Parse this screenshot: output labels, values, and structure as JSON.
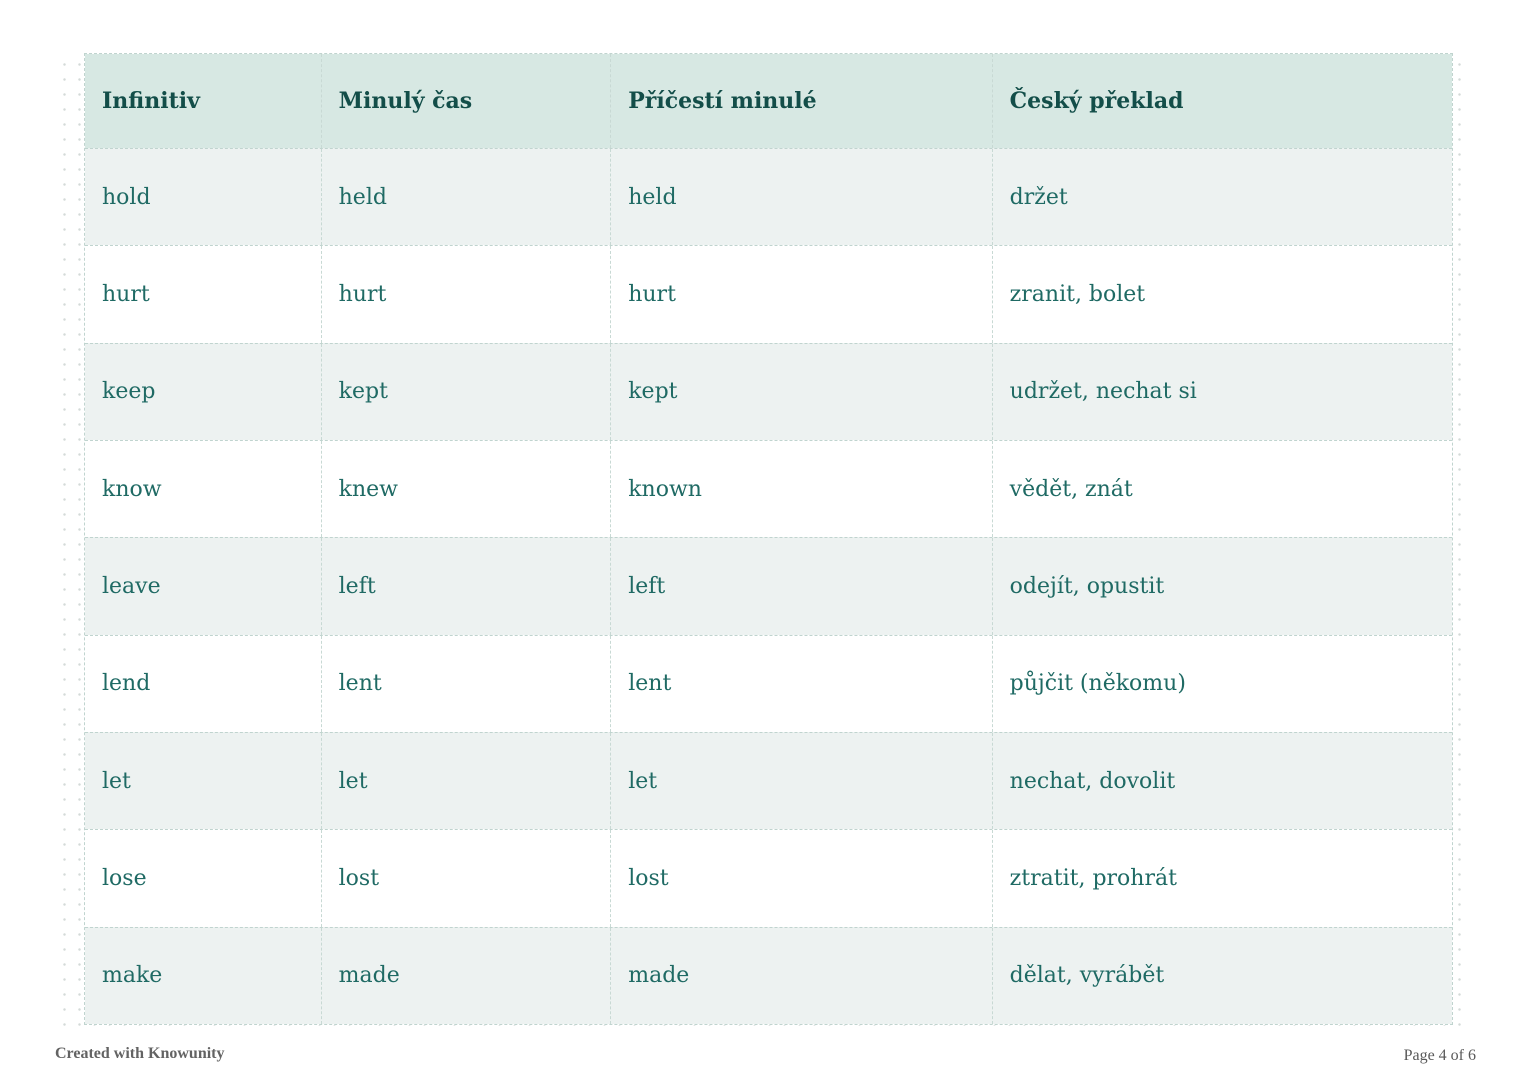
{
  "page": {
    "footer_left": "Created with Knowunity",
    "footer_right": "Page 4 of 6"
  },
  "colors": {
    "header_bg": "#d7e8e3",
    "alt_row_bg": "#edf2f1",
    "row_bg": "#ffffff",
    "body_text": "#1f6a64",
    "header_text": "#134e49",
    "dashed_border": "#c0d4cf",
    "dot_grid": "#d4dad8",
    "footer_text": "#636363"
  },
  "table": {
    "headers": [
      "Infinitiv",
      "Minulý čas",
      "Příčestí minulé",
      "Český překlad"
    ],
    "rows": [
      [
        "hold",
        "held",
        "held",
        "držet"
      ],
      [
        "hurt",
        "hurt",
        "hurt",
        "zranit, bolet"
      ],
      [
        "keep",
        "kept",
        "kept",
        "udržet, nechat si"
      ],
      [
        "know",
        "knew",
        "known",
        "vědět, znát"
      ],
      [
        "leave",
        "left",
        "left",
        "odejít, opustit"
      ],
      [
        "lend",
        "lent",
        "lent",
        "půjčit (někomu)"
      ],
      [
        "let",
        "let",
        "let",
        "nechat, dovolit"
      ],
      [
        "lose",
        "lost",
        "lost",
        "ztratit, prohrát"
      ],
      [
        "make",
        "made",
        "made",
        "dělat, vyrábět"
      ]
    ]
  }
}
